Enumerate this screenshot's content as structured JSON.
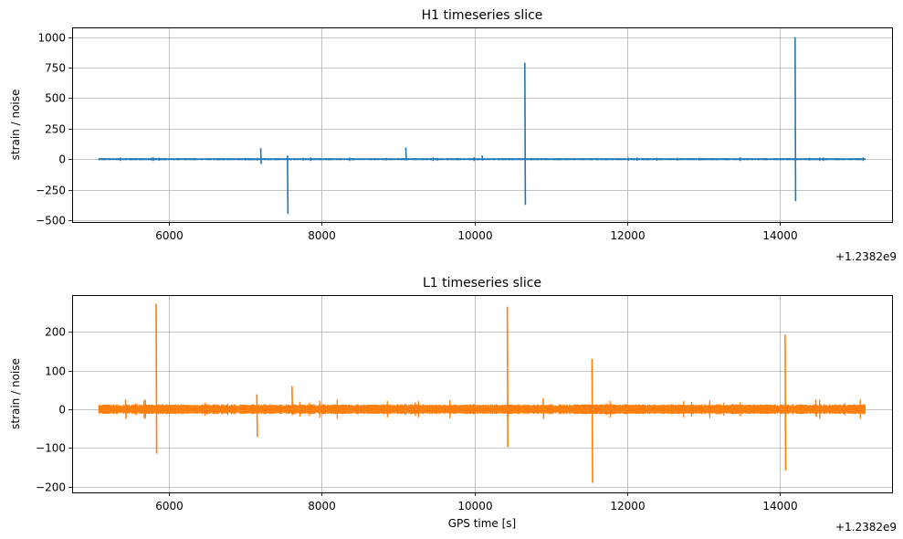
{
  "chart_data": [
    {
      "type": "line",
      "title": "H1 timeseries slice",
      "xlabel": "",
      "ylabel": "strain / noise",
      "x_offset_label": "+1.2382e9",
      "x_offset": 1238200000,
      "xlim": [
        4730,
        15470
      ],
      "ylim": [
        -515,
        1080
      ],
      "xticks": [
        6000,
        8000,
        10000,
        12000,
        14000
      ],
      "xtick_labels": [
        "6000",
        "8000",
        "10000",
        "12000",
        "14000"
      ],
      "yticks": [
        -500,
        -250,
        0,
        250,
        500,
        750,
        1000
      ],
      "ytick_labels": [
        "−500",
        "−250",
        "0",
        "250",
        "500",
        "750",
        "1000"
      ],
      "grid": true,
      "color": "#1f77b4",
      "x_range": [
        5080,
        15120
      ],
      "noise_amplitude": 8,
      "glitches": [
        {
          "x": 7200,
          "max": 90,
          "min": -40
        },
        {
          "x": 7550,
          "max": 30,
          "min": -450
        },
        {
          "x": 9100,
          "max": 95,
          "min": -10
        },
        {
          "x": 10100,
          "max": 30,
          "min": -10
        },
        {
          "x": 10660,
          "max": 790,
          "min": -375
        },
        {
          "x": 14200,
          "max": 1000,
          "min": -345
        }
      ]
    },
    {
      "type": "line",
      "title": "L1 timeseries slice",
      "xlabel": "GPS time [s]",
      "ylabel": "strain / noise",
      "x_offset_label": "+1.2382e9",
      "x_offset": 1238200000,
      "xlim": [
        4730,
        15470
      ],
      "ylim": [
        -215,
        295
      ],
      "xticks": [
        6000,
        8000,
        10000,
        12000,
        14000
      ],
      "xtick_labels": [
        "6000",
        "8000",
        "10000",
        "12000",
        "14000"
      ],
      "yticks": [
        -200,
        -100,
        0,
        100,
        200
      ],
      "ytick_labels": [
        "−200",
        "−100",
        "0",
        "100",
        "200"
      ],
      "grid": true,
      "color": "#ff7f0e",
      "x_range": [
        5080,
        15120
      ],
      "noise_amplitude": 13,
      "glitches": [
        {
          "x": 5430,
          "max": 25,
          "min": -25
        },
        {
          "x": 5830,
          "max": 272,
          "min": -115
        },
        {
          "x": 7150,
          "max": 38,
          "min": -72
        },
        {
          "x": 7610,
          "max": 60,
          "min": -15
        },
        {
          "x": 10430,
          "max": 265,
          "min": -98
        },
        {
          "x": 10900,
          "max": 28,
          "min": -25
        },
        {
          "x": 11540,
          "max": 130,
          "min": -190
        },
        {
          "x": 14070,
          "max": 193,
          "min": -158
        },
        {
          "x": 14470,
          "max": 25,
          "min": -20
        }
      ]
    }
  ]
}
